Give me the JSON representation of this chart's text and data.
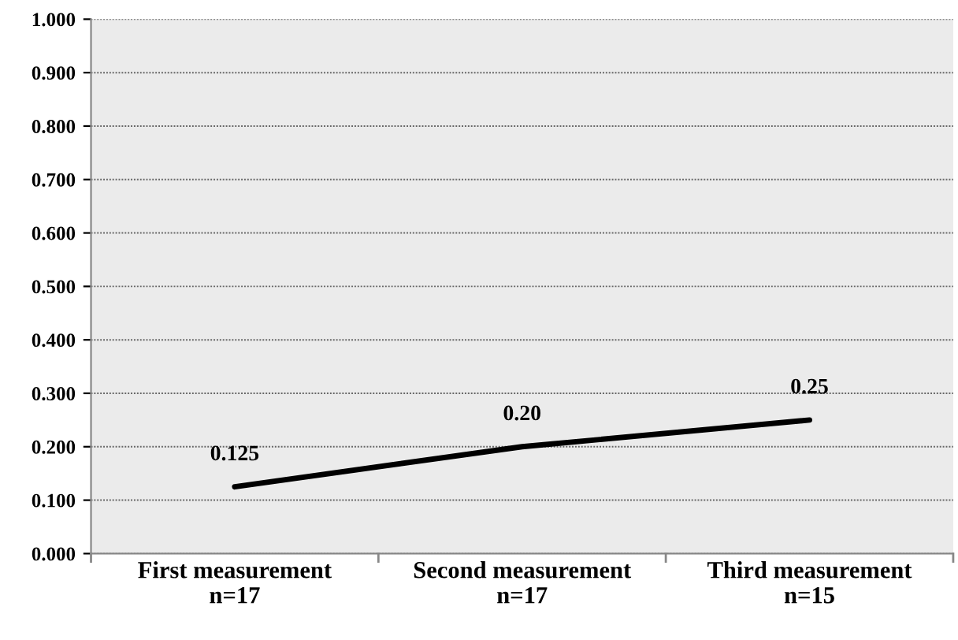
{
  "chart_data": {
    "type": "line",
    "categories": [
      "First measurement\nn=17",
      "Second measurement\nn=17",
      "Third measurement\nn=15"
    ],
    "series": [
      {
        "color": "#000000",
        "values": [
          0.125,
          0.2,
          0.25
        ],
        "value_labels": [
          "0.125",
          "0.20",
          "0.25"
        ]
      }
    ],
    "ylim": [
      0,
      1
    ],
    "yticks": [
      {
        "value": 0,
        "label": "0.000"
      },
      {
        "value": 0.1,
        "label": "0.100"
      },
      {
        "value": 0.2,
        "label": "0.200"
      },
      {
        "value": 0.3,
        "label": "0.300"
      },
      {
        "value": 0.4,
        "label": "0.400"
      },
      {
        "value": 0.5,
        "label": "0.500"
      },
      {
        "value": 0.6,
        "label": "0.600"
      },
      {
        "value": 0.7,
        "label": "0.700"
      },
      {
        "value": 0.8,
        "label": "0.800"
      },
      {
        "value": 0.9,
        "label": "0.900"
      },
      {
        "value": 1,
        "label": "1.000"
      }
    ],
    "grid": "y",
    "marker": "none",
    "line_style": "solid"
  }
}
